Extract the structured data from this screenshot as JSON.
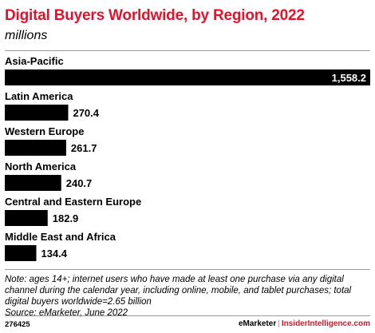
{
  "chart_data": {
    "type": "bar",
    "orientation": "horizontal",
    "title": "Digital Buyers Worldwide, by Region, 2022",
    "subtitle": "millions",
    "categories": [
      "Asia-Pacific",
      "Latin America",
      "Western Europe",
      "North America",
      "Central and Eastern Europe",
      "Middle East and Africa"
    ],
    "values": [
      1558.2,
      270.4,
      261.7,
      240.7,
      182.9,
      134.4
    ],
    "value_labels": [
      "1,558.2",
      "270.4",
      "261.7",
      "240.7",
      "182.9",
      "134.4"
    ],
    "bar_color": "#000000",
    "grid": false
  },
  "note": "Note: ages 14+; internet users who have made at least one purchase via any digital channel during the calendar year, including online, mobile, and tablet purchases; total digital buyers worldwide=2.65 billion",
  "source": "Source: eMarketer, June 2022",
  "footer": {
    "chart_id": "276425",
    "brand_left": "eMarketer",
    "separator": "|",
    "brand_right": "InsiderIntelligence.com"
  },
  "colors": {
    "accent": "#e3122b",
    "bar": "#000000",
    "rule": "#9a9a9a"
  }
}
